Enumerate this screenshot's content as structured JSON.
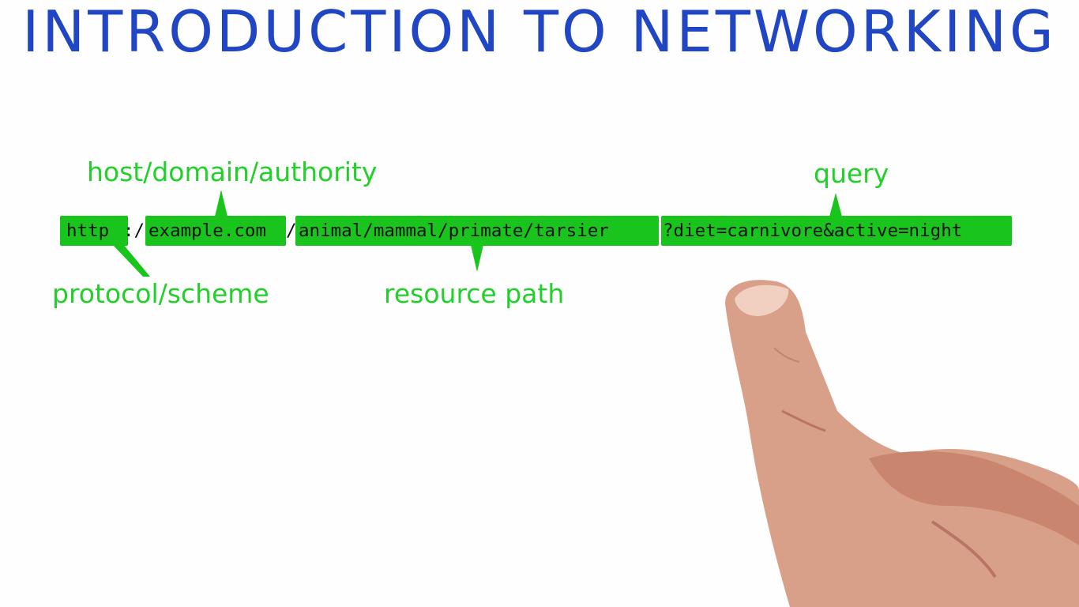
{
  "title": "INTRODUCTION TO NETWORKING",
  "url_segments": [
    {
      "text": "http",
      "highlight": true
    },
    {
      "text": "://",
      "highlight": false
    },
    {
      "text": "example.com",
      "highlight": true
    },
    {
      "text": "/",
      "highlight": false
    },
    {
      "text": "animal/mammal/primate/tarsier",
      "highlight": true
    },
    {
      "text": "?diet=carnivore&active=night",
      "highlight": true
    }
  ],
  "labels": {
    "host": "host/domain/authority",
    "query": "query",
    "protocol": "protocol/scheme",
    "path": "resource path"
  },
  "colors": {
    "title": "#2046c3",
    "highlight": "#19c41d",
    "label": "#22d02a"
  },
  "icons": [
    "pointing-hand"
  ]
}
